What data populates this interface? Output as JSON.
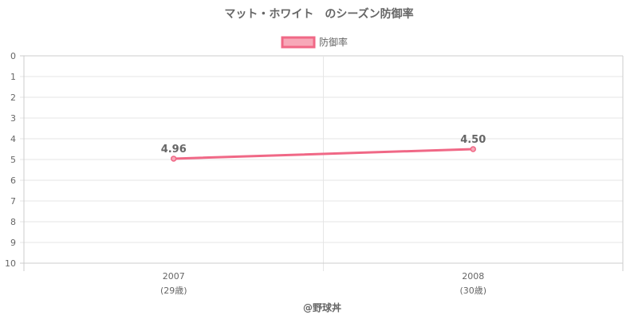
{
  "chart_data": {
    "type": "line",
    "title": "マット・ホワイト　のシーズン防御率",
    "categories": [
      "2007",
      "2008"
    ],
    "category_sublabels": [
      "(29歳)",
      "(30歳)"
    ],
    "series": [
      {
        "name": "防御率",
        "values": [
          4.96,
          4.5
        ],
        "labels": [
          "4.96",
          "4.50"
        ],
        "color": "#f06886",
        "fill_color": "#f7a8b8"
      }
    ],
    "ylim": [
      0,
      10
    ],
    "y_ticks": [
      "0",
      "1",
      "2",
      "3",
      "4",
      "5",
      "6",
      "7",
      "8",
      "9",
      "10"
    ],
    "y_reversed": true,
    "grid": true,
    "legend_position": "top-center"
  },
  "credit": "@野球丼",
  "colors": {
    "text": "#666666",
    "grid": "#e6e6e6",
    "axis": "#cccccc"
  }
}
